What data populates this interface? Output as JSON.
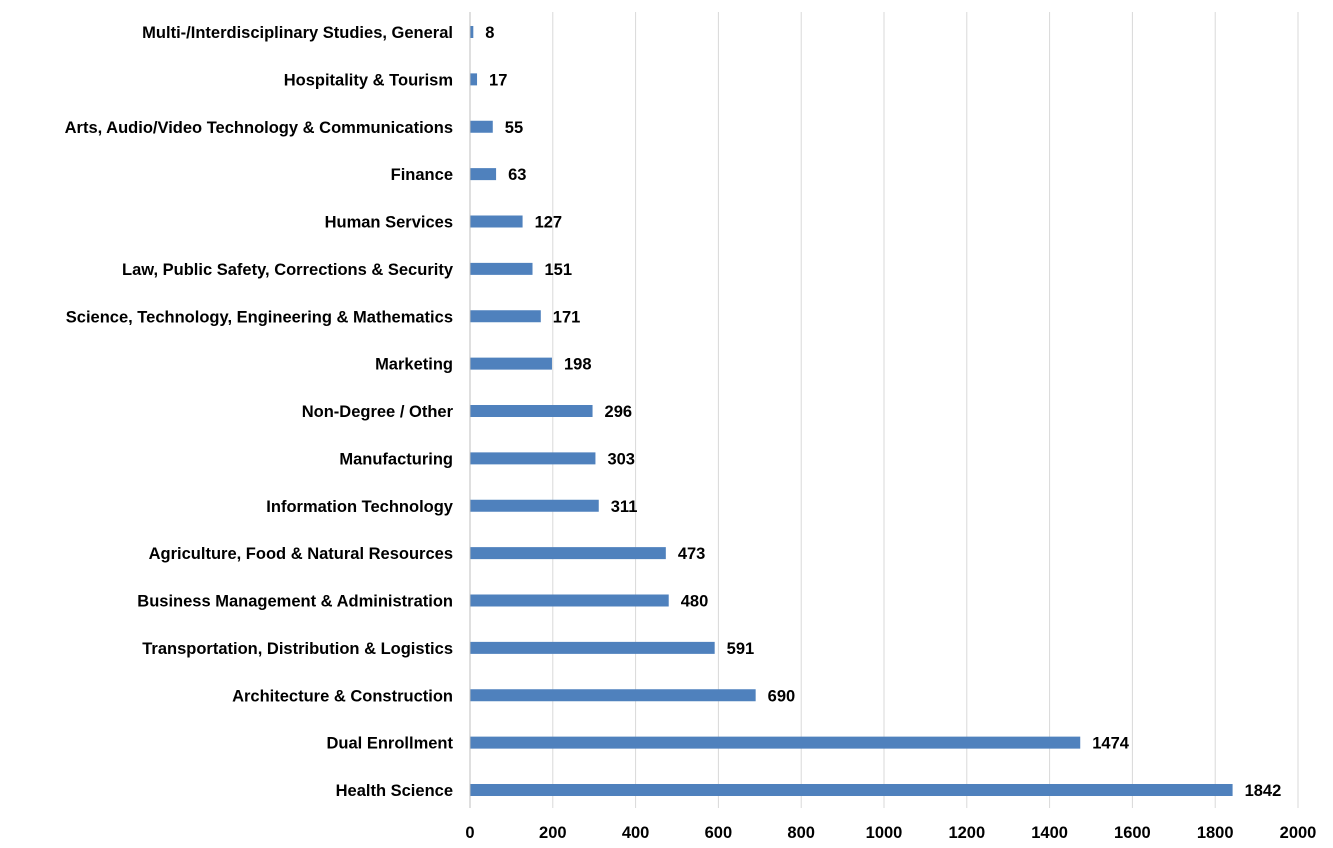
{
  "chart_data": {
    "type": "bar",
    "orientation": "horizontal",
    "categories": [
      "Multi-/Interdisciplinary Studies, General",
      "Hospitality & Tourism",
      "Arts, Audio/Video Technology & Communications",
      "Finance",
      "Human Services",
      "Law, Public Safety, Corrections & Security",
      "Science, Technology, Engineering & Mathematics",
      "Marketing",
      "Non-Degree / Other",
      "Manufacturing",
      "Information Technology",
      "Agriculture, Food & Natural Resources",
      "Business Management & Administration",
      "Transportation, Distribution & Logistics",
      "Architecture & Construction",
      "Dual Enrollment",
      "Health Science"
    ],
    "values": [
      8,
      17,
      55,
      63,
      127,
      151,
      171,
      198,
      296,
      303,
      311,
      473,
      480,
      591,
      690,
      1474,
      1842
    ],
    "xlim": [
      0,
      2000
    ],
    "xticks": [
      0,
      200,
      400,
      600,
      800,
      1000,
      1200,
      1400,
      1600,
      1800,
      2000
    ],
    "grid": "vertical",
    "bar_color": "#4f81bd",
    "data_labels": true
  }
}
